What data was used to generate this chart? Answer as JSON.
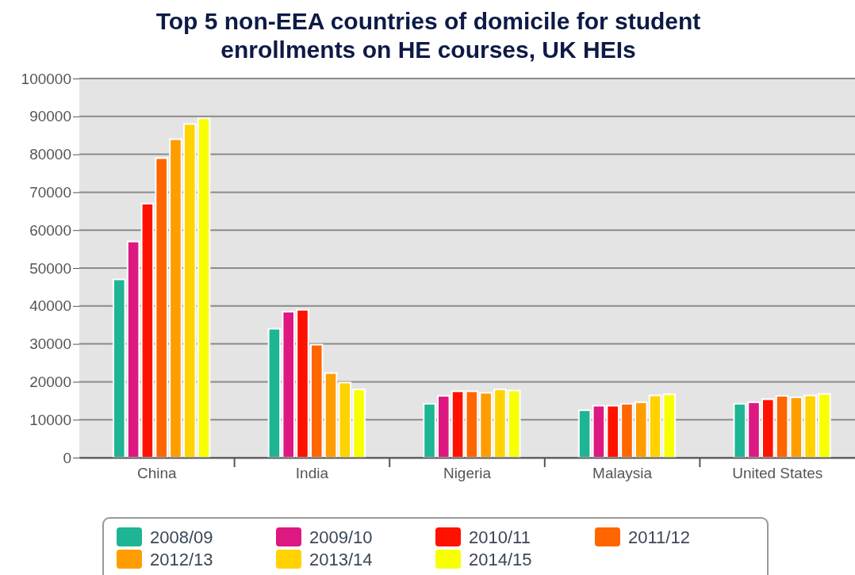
{
  "chart_data": {
    "type": "bar",
    "title": "Top 5 non-EEA countries of domicile for student enrollments on HE courses, UK HEIs",
    "categories": [
      "China",
      "India",
      "Nigeria",
      "Malaysia",
      "United States"
    ],
    "series": [
      {
        "name": "2008/09",
        "color": "#1db594",
        "values": [
          47000,
          34000,
          14200,
          12500,
          14200
        ]
      },
      {
        "name": "2009/10",
        "color": "#dd1881",
        "values": [
          57000,
          38500,
          16300,
          13700,
          14600
        ]
      },
      {
        "name": "2010/11",
        "color": "#ff1100",
        "values": [
          67000,
          39000,
          17500,
          13700,
          15400
        ]
      },
      {
        "name": "2011/12",
        "color": "#ff6600",
        "values": [
          79000,
          29800,
          17500,
          14200,
          16300
        ]
      },
      {
        "name": "2012/13",
        "color": "#ff9d00",
        "values": [
          84000,
          22300,
          17100,
          14600,
          15900
        ]
      },
      {
        "name": "2013/14",
        "color": "#ffd200",
        "values": [
          88000,
          19800,
          18000,
          16400,
          16400
        ]
      },
      {
        "name": "2014/15",
        "color": "#f7ff00",
        "values": [
          89500,
          18000,
          17700,
          16700,
          16800
        ]
      }
    ],
    "ylim": [
      0,
      100000
    ],
    "yticks": [
      0,
      10000,
      20000,
      30000,
      40000,
      50000,
      60000,
      70000,
      80000,
      90000,
      100000
    ],
    "grid": "y",
    "legend": "bottom"
  }
}
